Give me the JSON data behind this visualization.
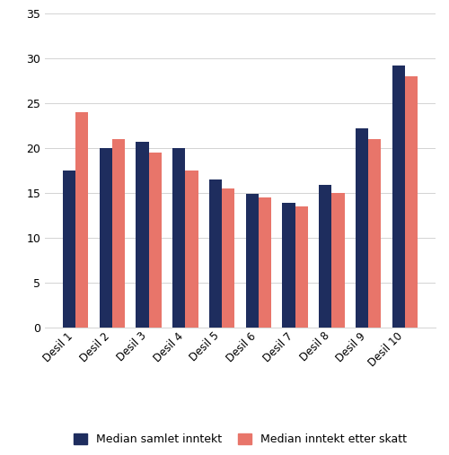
{
  "categories": [
    "Desil 1",
    "Desil 2",
    "Desil 3",
    "Desil 4",
    "Desil 5",
    "Desil 6",
    "Desil 7",
    "Desil 8",
    "Desil 9",
    "Desil 10"
  ],
  "median_samlet": [
    17.5,
    20.0,
    20.7,
    20.0,
    16.5,
    14.9,
    13.9,
    15.9,
    22.2,
    29.2
  ],
  "median_etter_skatt": [
    24.0,
    21.0,
    19.5,
    17.5,
    15.5,
    14.5,
    13.5,
    15.0,
    21.0,
    28.0
  ],
  "color_samlet": "#1e2d5e",
  "color_etter_skatt": "#e8756a",
  "ylim": [
    0,
    35
  ],
  "yticks": [
    0,
    5,
    10,
    15,
    20,
    25,
    30,
    35
  ],
  "legend_samlet": "Median samlet inntekt",
  "legend_etter_skatt": "Median inntekt etter skatt",
  "background_color": "#ffffff",
  "bar_width": 0.35,
  "figsize": [
    5.0,
    5.07
  ],
  "dpi": 100
}
